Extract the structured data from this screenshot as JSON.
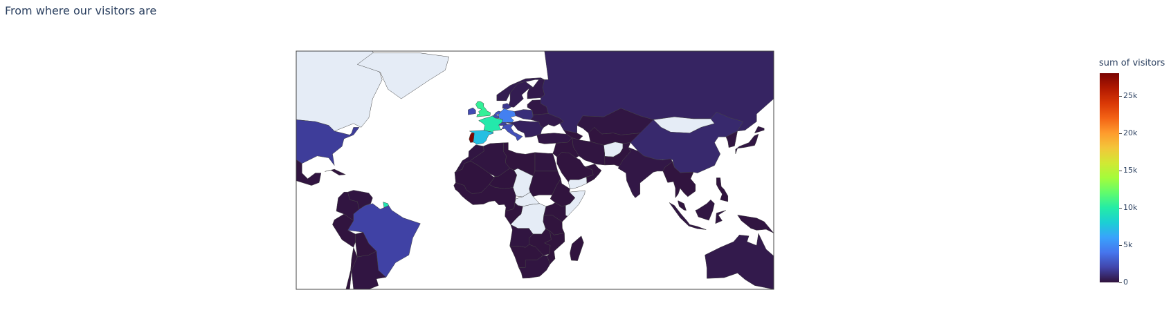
{
  "title": "From where our visitors are",
  "chart_data": {
    "type": "choropleth",
    "projection": "equirectangular",
    "title": "From where our visitors are",
    "colorbar_title": "sum of visitors",
    "colorscale": "turbo",
    "colorbar_range": [
      0,
      28000
    ],
    "colorbar_ticks": [
      {
        "value": 0,
        "label": "0"
      },
      {
        "value": 5000,
        "label": "5k"
      },
      {
        "value": 10000,
        "label": "10k"
      },
      {
        "value": 15000,
        "label": "15k"
      },
      {
        "value": 20000,
        "label": "20k"
      },
      {
        "value": 25000,
        "label": "25k"
      }
    ],
    "lonaxis_range": [
      -100,
      150
    ],
    "lataxis_range": [
      -40,
      85
    ],
    "no_data_color": "#e5ecf6",
    "background_color": "#ffffff",
    "countries": [
      {
        "name": "Portugal",
        "visitors": 27800
      },
      {
        "name": "United Kingdom",
        "visitors": 10500
      },
      {
        "name": "France",
        "visitors": 9800
      },
      {
        "name": "French Guiana",
        "visitors": 9500
      },
      {
        "name": "Spain",
        "visitors": 7300
      },
      {
        "name": "Germany",
        "visitors": 4500
      },
      {
        "name": "Netherlands",
        "visitors": 2600
      },
      {
        "name": "Belgium",
        "visitors": 2300
      },
      {
        "name": "Switzerland",
        "visitors": 1800
      },
      {
        "name": "Italy",
        "visitors": 2400
      },
      {
        "name": "Ireland",
        "visitors": 2200
      },
      {
        "name": "Brazil",
        "visitors": 1900
      },
      {
        "name": "United States",
        "visitors": 1700
      },
      {
        "name": "Denmark",
        "visitors": 1500
      },
      {
        "name": "Poland",
        "visitors": 1100
      },
      {
        "name": "China",
        "visitors": 900
      },
      {
        "name": "Russia",
        "visitors": 700
      },
      {
        "name": "Australia",
        "visitors": 300
      },
      {
        "name": "India",
        "visitors": 200
      },
      {
        "name": "Kazakhstan",
        "visitors": 150
      },
      {
        "name": "Indonesia",
        "visitors": 150
      },
      {
        "name": "Morocco",
        "visitors": 120
      },
      {
        "name": "Algeria",
        "visitors": 100
      },
      {
        "name": "Egypt",
        "visitors": 100
      },
      {
        "name": "Nigeria",
        "visitors": 100
      },
      {
        "name": "South Africa",
        "visitors": 100
      },
      {
        "name": "Angola",
        "visitors": 100
      },
      {
        "name": "Iran",
        "visitors": 100
      },
      {
        "name": "Turkey",
        "visitors": 200
      },
      {
        "name": "Ukraine",
        "visitors": 300
      },
      {
        "name": "Sweden",
        "visitors": 400
      },
      {
        "name": "Norway",
        "visitors": 400
      },
      {
        "name": "Finland",
        "visitors": 300
      },
      {
        "name": "Argentina",
        "visitors": 120
      },
      {
        "name": "Venezuela",
        "visitors": 100
      },
      {
        "name": "Colombia",
        "visitors": 100
      },
      {
        "name": "Peru",
        "visitors": 80
      },
      {
        "name": "Madagascar",
        "visitors": 60
      },
      {
        "name": "Mozambique",
        "visitors": 60
      },
      {
        "name": "Tanzania",
        "visitors": 60
      },
      {
        "name": "Kenya",
        "visitors": 60
      },
      {
        "name": "Ethiopia",
        "visitors": 60
      },
      {
        "name": "Saudi Arabia",
        "visitors": 80
      },
      {
        "name": "Pakistan",
        "visitors": 80
      },
      {
        "name": "Thailand",
        "visitors": 80
      },
      {
        "name": "Vietnam",
        "visitors": 80
      },
      {
        "name": "Philippines",
        "visitors": 80
      },
      {
        "name": "Japan",
        "visitors": 150
      },
      {
        "name": "Mali",
        "visitors": 50
      },
      {
        "name": "Niger",
        "visitors": 50
      },
      {
        "name": "Libya",
        "visitors": 50
      },
      {
        "name": "Sudan",
        "visitors": 50
      },
      {
        "name": "Canada",
        "visitors": null
      },
      {
        "name": "Greenland",
        "visitors": null
      },
      {
        "name": "Mongolia",
        "visitors": null
      },
      {
        "name": "Chad",
        "visitors": null
      },
      {
        "name": "Democratic Republic of the Congo",
        "visitors": null
      },
      {
        "name": "Somalia",
        "visitors": null
      },
      {
        "name": "Yemen",
        "visitors": null
      },
      {
        "name": "Afghanistan",
        "visitors": null
      },
      {
        "name": "Central African Republic",
        "visitors": null
      }
    ]
  }
}
